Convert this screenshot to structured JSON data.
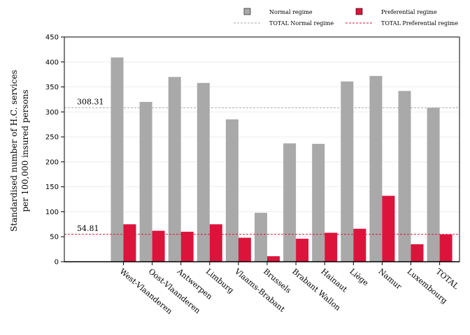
{
  "chart_data": {
    "type": "bar",
    "categories": [
      "West-Vlaanderen",
      "Oost-Vlaanderen",
      "Antwerpen",
      "Limburg",
      "Vlaams-Brabant",
      "Brussels",
      "Brabant Wallon",
      "Hainaut",
      "Liège",
      "Namur",
      "Luxembourg",
      "TOTAL"
    ],
    "series": [
      {
        "name": "Normal regime",
        "color": "#a9a9a9",
        "values": [
          409,
          320,
          370,
          358,
          285,
          98,
          237,
          236,
          361,
          372,
          342,
          308.31
        ]
      },
      {
        "name": "Preferential regime",
        "color": "#dc143c",
        "values": [
          75,
          62,
          60,
          75,
          48,
          11,
          46,
          58,
          66,
          132,
          35,
          54.81
        ]
      }
    ],
    "reference_lines": [
      {
        "name": "TOTAL Normal regime",
        "value": 308.31,
        "label": "308.31",
        "color": "#a9a9a9"
      },
      {
        "name": "TOTAL Preferential regime",
        "value": 54.81,
        "label": "54.81",
        "color": "#dc143c"
      }
    ],
    "ylabel_lines": [
      "Standardised number of H.C. services",
      "per 100,000 insured persons"
    ],
    "ylim": [
      0,
      450
    ],
    "yticks": [
      0,
      50,
      100,
      150,
      200,
      250,
      300,
      350,
      400,
      450
    ],
    "grid": true,
    "legend_position": "top-right"
  }
}
